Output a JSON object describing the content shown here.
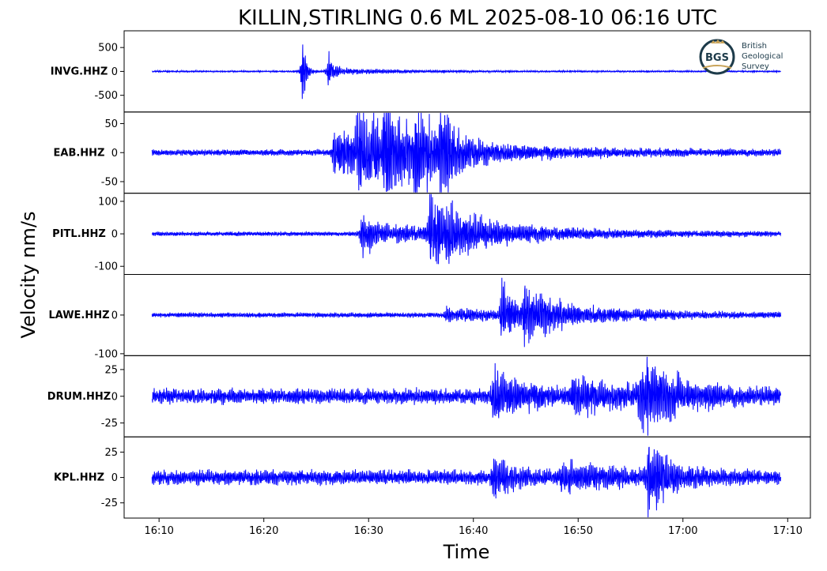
{
  "chart_data": {
    "type": "line",
    "title": "KILLIN,STIRLING 0.6 ML   2025-08-10 06:16 UTC",
    "xlabel": "Time",
    "ylabel": "Velocity nm/s",
    "x_ticks": [
      "16:10",
      "16:20",
      "16:30",
      "16:40",
      "16:50",
      "17:00",
      "17:10"
    ],
    "x_range": [
      "16:06:40",
      "17:12:10"
    ],
    "data_range": [
      "16:09:20",
      "17:09:20"
    ],
    "line_color": "#0000ff",
    "grid": false,
    "series": [
      {
        "name": "INVG.HHZ",
        "ylim": [
          -850,
          850
        ],
        "yticks": [
          {
            "v": 500,
            "label": "500"
          },
          {
            "v": 0,
            "label": "0"
          },
          {
            "v": -500,
            "label": "-500"
          }
        ],
        "noise": 15,
        "bursts": [
          {
            "t": 14.3,
            "amp": 780,
            "decay": 0.35
          },
          {
            "t": 16.8,
            "amp": 580,
            "decay": 0.35
          },
          {
            "t": 17.5,
            "amp": 60,
            "decay": 6
          }
        ]
      },
      {
        "name": "EAB.HHZ",
        "ylim": [
          -70,
          70
        ],
        "yticks": [
          {
            "v": 50,
            "label": "50"
          },
          {
            "v": 0,
            "label": "0"
          },
          {
            "v": -50,
            "label": "-50"
          }
        ],
        "noise": 5,
        "bursts": [
          {
            "t": 17.3,
            "amp": 35,
            "decay": 12
          },
          {
            "t": 19.5,
            "amp": 55,
            "decay": 2.5
          },
          {
            "t": 22,
            "amp": 52,
            "decay": 2.5
          },
          {
            "t": 25,
            "amp": 48,
            "decay": 2
          },
          {
            "t": 27.5,
            "amp": 55,
            "decay": 1.5
          }
        ]
      },
      {
        "name": "PITL.HHZ",
        "ylim": [
          -125,
          125
        ],
        "yticks": [
          {
            "v": 100,
            "label": "100"
          },
          {
            "v": 0,
            "label": "0"
          },
          {
            "v": -100,
            "label": "-100"
          }
        ],
        "noise": 6,
        "bursts": [
          {
            "t": 20,
            "amp": 90,
            "decay": 0.6
          },
          {
            "t": 20.5,
            "amp": 25,
            "decay": 15
          },
          {
            "t": 26.5,
            "amp": 110,
            "decay": 1.8
          },
          {
            "t": 28,
            "amp": 45,
            "decay": 6
          }
        ]
      },
      {
        "name": "LAWE.HHZ",
        "ylim": [
          -105,
          105
        ],
        "yticks": [
          {
            "v": 0,
            "label": "0"
          },
          {
            "v": -100,
            "label": "-100"
          }
        ],
        "noise": 6,
        "bursts": [
          {
            "t": 28,
            "amp": 15,
            "decay": 8
          },
          {
            "t": 33.3,
            "amp": 85,
            "decay": 1.2
          },
          {
            "t": 35.5,
            "amp": 70,
            "decay": 1.5
          },
          {
            "t": 37,
            "amp": 25,
            "decay": 8
          }
        ]
      },
      {
        "name": "DRUM.HHZ",
        "ylim": [
          -38,
          38
        ],
        "yticks": [
          {
            "v": 25,
            "label": "25"
          },
          {
            "v": 0,
            "label": "0"
          },
          {
            "v": -25,
            "label": "-25"
          }
        ],
        "noise": 7,
        "bursts": [
          {
            "t": 32.5,
            "amp": 22,
            "decay": 3
          },
          {
            "t": 40,
            "amp": 12,
            "decay": 6
          },
          {
            "t": 46.5,
            "amp": 30,
            "decay": 3.5
          }
        ]
      },
      {
        "name": "KPL.HHZ",
        "ylim": [
          -40,
          40
        ],
        "yticks": [
          {
            "v": 25,
            "label": "25"
          },
          {
            "v": 0,
            "label": "0"
          },
          {
            "v": -25,
            "label": "-25"
          }
        ],
        "noise": 7,
        "bursts": [
          {
            "t": 32.5,
            "amp": 16,
            "decay": 2
          },
          {
            "t": 39,
            "amp": 10,
            "decay": 5
          },
          {
            "t": 47.3,
            "amp": 34,
            "decay": 1.8
          }
        ]
      }
    ]
  },
  "logo": {
    "mark": "BGS",
    "lines": [
      "British",
      "Geological",
      "Survey"
    ],
    "color": "#1d3b4a",
    "accent": "#c9a45a"
  }
}
